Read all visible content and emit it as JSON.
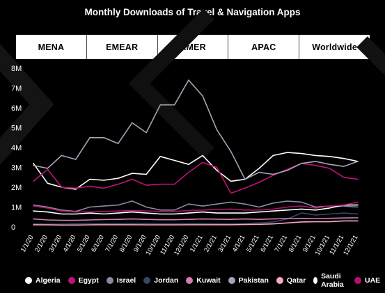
{
  "chart_data": {
    "type": "line",
    "title": "Monthly Downloads of Travel & Navigation Apps",
    "xlabel": "",
    "ylabel": "",
    "ylim": [
      0,
      8000000
    ],
    "yticks": [
      "0",
      "1M",
      "2M",
      "3M",
      "4M",
      "5M",
      "6M",
      "7M",
      "8M"
    ],
    "grid": false,
    "legend_position": "bottom",
    "categories": [
      "1/1/20",
      "2/1/20",
      "3/1/20",
      "4/1/20",
      "5/1/20",
      "6/1/20",
      "7/1/20",
      "8/1/20",
      "9/1/20",
      "10/1/20",
      "11/1/20",
      "12/1/20",
      "1/1/21",
      "2/1/21",
      "3/1/21",
      "4/1/21",
      "5/1/21",
      "6/1/21",
      "7/1/21",
      "8/1/21",
      "9/1/21",
      "10/1/21",
      "11/1/21",
      "12/1/21"
    ],
    "series": [
      {
        "name": "Algeria",
        "color": "#ffffff",
        "values": [
          3200000,
          2200000,
          2000000,
          1900000,
          2400000,
          2350000,
          2450000,
          2700000,
          2650000,
          3550000,
          3350000,
          3150000,
          3600000,
          2850000,
          2300000,
          2400000,
          2950000,
          3600000,
          3750000,
          3700000,
          3600000,
          3550000,
          3450000,
          3300000
        ]
      },
      {
        "name": "Egypt",
        "color": "#c0137a",
        "values": [
          2300000,
          2900000,
          2000000,
          1950000,
          2050000,
          1950000,
          2150000,
          2400000,
          2100000,
          2150000,
          2150000,
          2750000,
          3250000,
          3000000,
          1700000,
          1950000,
          2250000,
          2600000,
          2900000,
          3200000,
          3100000,
          2950000,
          2500000,
          2400000
        ]
      },
      {
        "name": "Israel",
        "color": "#8a8aa0",
        "values": [
          1100000,
          1000000,
          850000,
          780000,
          1000000,
          1050000,
          1100000,
          1300000,
          1000000,
          850000,
          850000,
          1150000,
          1050000,
          1150000,
          1250000,
          1150000,
          1000000,
          1200000,
          1300000,
          1250000,
          1000000,
          1050000,
          1050000,
          1000000
        ]
      },
      {
        "name": "Jordan",
        "color": "#3a4660",
        "values": [
          150000,
          140000,
          140000,
          150000,
          160000,
          170000,
          170000,
          180000,
          170000,
          160000,
          160000,
          170000,
          170000,
          160000,
          160000,
          170000,
          200000,
          250000,
          400000,
          700000,
          600000,
          650000,
          700000,
          650000
        ]
      },
      {
        "name": "Kuwait",
        "color": "#cf7eb2",
        "values": [
          400000,
          350000,
          330000,
          330000,
          350000,
          370000,
          380000,
          400000,
          380000,
          360000,
          360000,
          380000,
          400000,
          390000,
          380000,
          400000,
          380000,
          400000,
          420000,
          430000,
          420000,
          430000,
          450000,
          460000
        ]
      },
      {
        "name": "Pakistan",
        "color": "#a8a3b6",
        "values": [
          3100000,
          2950000,
          3600000,
          3400000,
          4500000,
          4500000,
          4200000,
          5250000,
          4750000,
          6150000,
          6150000,
          7400000,
          6600000,
          4900000,
          3800000,
          2400000,
          2750000,
          2650000,
          2850000,
          3200000,
          3300000,
          3150000,
          3050000,
          3300000
        ]
      },
      {
        "name": "Qatar",
        "color": "#f7a8c8",
        "values": [
          100000,
          100000,
          90000,
          90000,
          100000,
          110000,
          110000,
          110000,
          100000,
          100000,
          100000,
          110000,
          110000,
          110000,
          110000,
          120000,
          130000,
          150000,
          200000,
          250000,
          260000,
          260000,
          300000,
          300000
        ]
      },
      {
        "name": "Saudi Arabia",
        "color": "#ffffff",
        "values": [
          800000,
          750000,
          650000,
          650000,
          700000,
          650000,
          700000,
          750000,
          700000,
          650000,
          650000,
          700000,
          750000,
          700000,
          700000,
          700000,
          750000,
          800000,
          850000,
          900000,
          850000,
          950000,
          1100000,
          1100000
        ]
      },
      {
        "name": "UAE",
        "color": "#b0126f",
        "values": [
          1050000,
          950000,
          800000,
          750000,
          750000,
          780000,
          800000,
          820000,
          800000,
          780000,
          780000,
          820000,
          850000,
          880000,
          900000,
          850000,
          850000,
          900000,
          1000000,
          1050000,
          950000,
          1050000,
          1100000,
          1250000
        ]
      }
    ]
  },
  "tabs": [
    "MENA",
    "EMEAR",
    "AMER",
    "APAC",
    "Worldwide"
  ]
}
